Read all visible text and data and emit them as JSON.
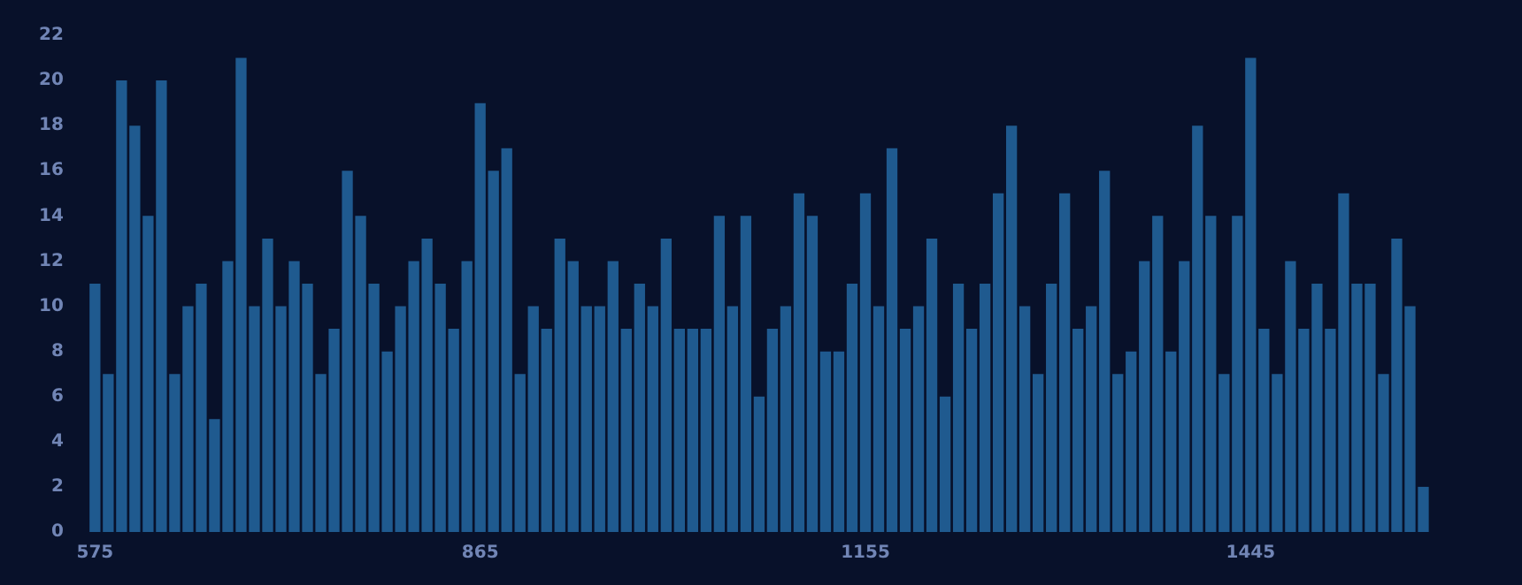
{
  "chart_data": {
    "type": "bar",
    "categories": [
      "575",
      null,
      null,
      null,
      null,
      null,
      null,
      null,
      null,
      null,
      null,
      null,
      null,
      null,
      null,
      null,
      null,
      null,
      null,
      null,
      null,
      null,
      null,
      null,
      null,
      null,
      null,
      null,
      null,
      "865",
      null,
      null,
      null,
      null,
      null,
      null,
      null,
      null,
      null,
      null,
      null,
      null,
      null,
      null,
      null,
      null,
      null,
      null,
      null,
      null,
      null,
      null,
      null,
      null,
      null,
      null,
      null,
      null,
      "1155",
      null,
      null,
      null,
      null,
      null,
      null,
      null,
      null,
      null,
      null,
      null,
      null,
      null,
      null,
      null,
      null,
      null,
      null,
      null,
      null,
      null,
      null,
      null,
      null,
      null,
      null,
      null,
      null,
      "1445",
      null,
      null,
      null,
      null,
      null,
      null,
      null,
      null,
      null,
      null,
      null,
      null,
      null
    ],
    "values": [
      11,
      7,
      20,
      18,
      14,
      20,
      7,
      10,
      11,
      5,
      12,
      21,
      10,
      13,
      10,
      12,
      11,
      7,
      9,
      16,
      14,
      11,
      8,
      10,
      12,
      13,
      11,
      9,
      12,
      19,
      16,
      17,
      7,
      10,
      9,
      13,
      12,
      10,
      10,
      12,
      9,
      11,
      10,
      13,
      9,
      9,
      9,
      14,
      10,
      14,
      6,
      9,
      10,
      15,
      14,
      8,
      8,
      11,
      15,
      10,
      17,
      9,
      10,
      13,
      6,
      11,
      9,
      11,
      15,
      18,
      10,
      7,
      11,
      15,
      9,
      10,
      16,
      7,
      8,
      12,
      14,
      8,
      12,
      18,
      14,
      7,
      14,
      21,
      9,
      7,
      12,
      9,
      11,
      9,
      15,
      11,
      11,
      7,
      13,
      10,
      2
    ],
    "color": "#1f5a8f",
    "ylim": [
      0,
      22
    ],
    "yticks": [
      0,
      2,
      4,
      6,
      8,
      10,
      12,
      14,
      16,
      18,
      20,
      22
    ],
    "grid": false,
    "legend": false
  }
}
